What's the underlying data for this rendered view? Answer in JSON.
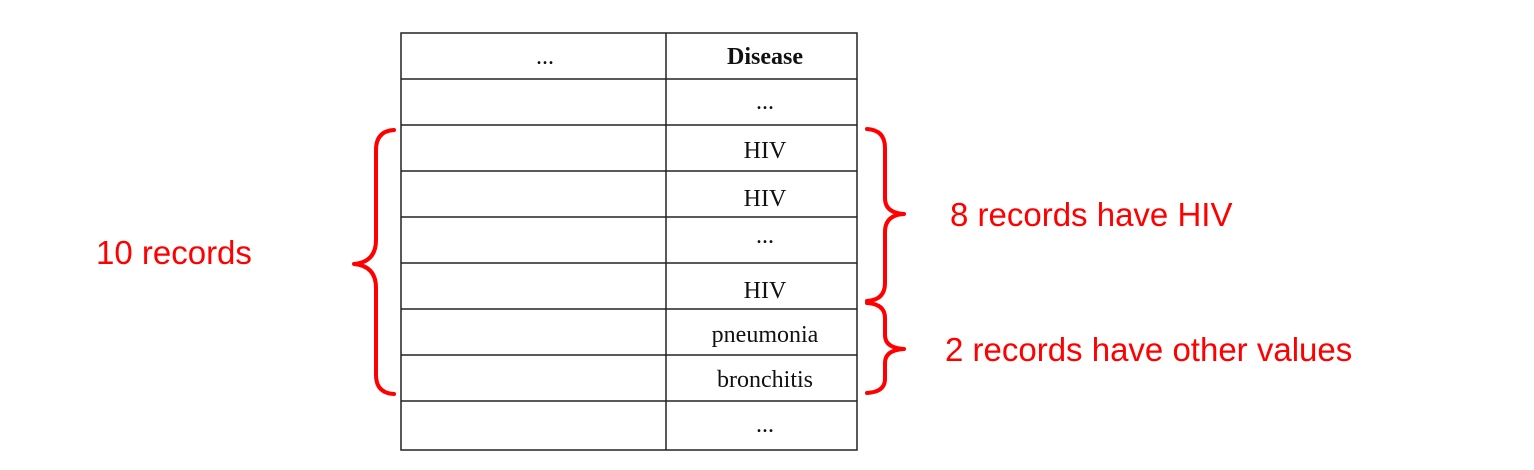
{
  "table": {
    "headers": [
      "...",
      "Disease"
    ],
    "rows": [
      [
        "",
        "..."
      ],
      [
        "",
        "HIV"
      ],
      [
        "",
        "HIV"
      ],
      [
        "",
        "..."
      ],
      [
        "",
        "HIV"
      ],
      [
        "",
        "pneumonia"
      ],
      [
        "",
        "bronchitis"
      ],
      [
        "",
        "..."
      ]
    ]
  },
  "annotations": {
    "left_label": "10 records",
    "right_top_label": "8 records have HIV",
    "right_bottom_label": "2 records have other values"
  },
  "colors": {
    "annotation": "#ff0000",
    "grid": "#222222",
    "text": "#111111",
    "background": "#ffffff"
  }
}
